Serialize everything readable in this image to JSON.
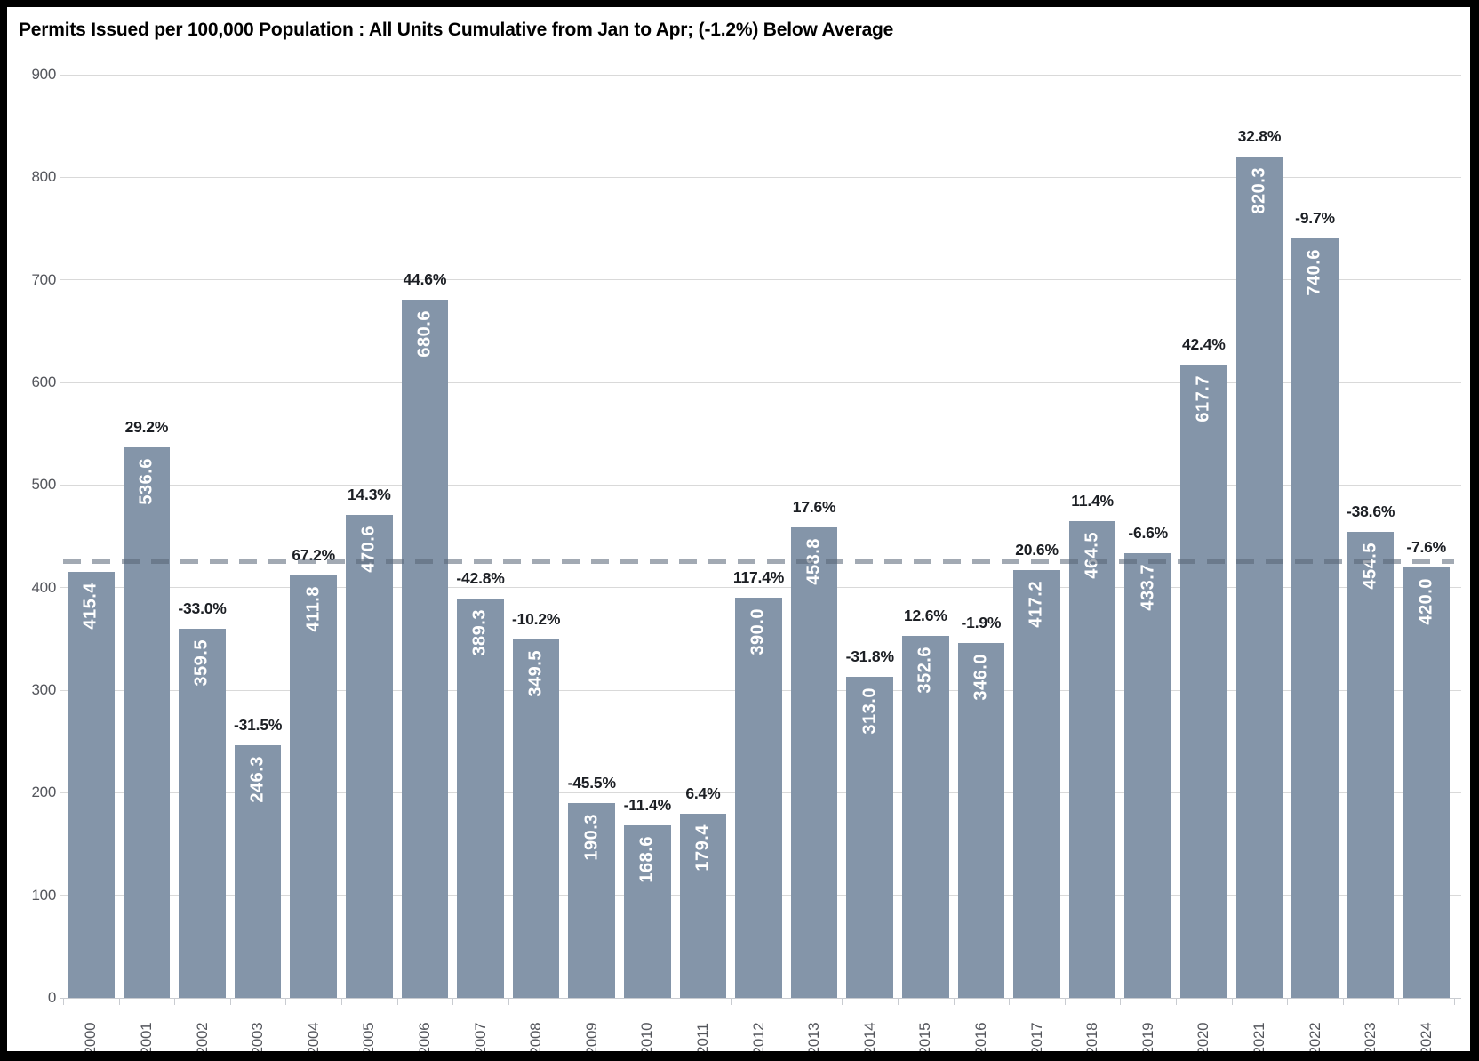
{
  "chart_data": {
    "type": "bar",
    "title": "Permits Issued per 100,000 Population : All Units Cumulative from Jan to Apr; (-1.2%) Below Average",
    "categories": [
      "2000",
      "2001",
      "2002",
      "2003",
      "2004",
      "2005",
      "2006",
      "2007",
      "2008",
      "2009",
      "2010",
      "2011",
      "2012",
      "2013",
      "2014",
      "2015",
      "2016",
      "2017",
      "2018",
      "2019",
      "2020",
      "2021",
      "2022",
      "2023",
      "2024"
    ],
    "values": [
      415.4,
      536.6,
      359.5,
      246.3,
      411.8,
      470.6,
      680.6,
      389.3,
      349.5,
      190.3,
      168.6,
      179.4,
      390.0,
      458.8,
      313.0,
      352.6,
      346.0,
      417.2,
      464.5,
      433.7,
      617.7,
      820.3,
      740.6,
      454.5,
      420.0
    ],
    "value_labels": [
      "415.4",
      "536.6",
      "359.5",
      "246.3",
      "411.8",
      "470.6",
      "680.6",
      "389.3",
      "349.5",
      "190.3",
      "168.6",
      "179.4",
      "390.0",
      "458.8",
      "313.0",
      "352.6",
      "346.0",
      "417.2",
      "464.5",
      "433.7",
      "617.7",
      "820.3",
      "740.6",
      "454.5",
      "420.0"
    ],
    "pct_change_labels": [
      "",
      "29.2%",
      "-33.0%",
      "-31.5%",
      "67.2%",
      "14.3%",
      "44.6%",
      "-42.8%",
      "-10.2%",
      "-45.5%",
      "-11.4%",
      "6.4%",
      "117.4%",
      "17.6%",
      "-31.8%",
      "12.6%",
      "-1.9%",
      "20.6%",
      "11.4%",
      "-6.6%",
      "42.4%",
      "32.8%",
      "-9.7%",
      "-38.6%",
      "-7.6%"
    ],
    "average_line_value": 425.1,
    "ylim": [
      0,
      900
    ],
    "ytick_interval": 100,
    "ytick_labels": [
      "0",
      "100",
      "200",
      "300",
      "400",
      "500",
      "600",
      "700",
      "800",
      "900"
    ],
    "grid": true,
    "legend": "none",
    "colors": {
      "bar": "#8495A9",
      "value_label": "#FFFFFF",
      "pct_label": "#1C1F24",
      "gridline": "#D9D9D9",
      "axis_line": "#C9CCD1",
      "axis_label": "#54565C",
      "average_line": "rgba(86,99,117,0.55)",
      "background": "#FFFFFF",
      "frame_border": "#000000",
      "title": "#000000"
    }
  }
}
